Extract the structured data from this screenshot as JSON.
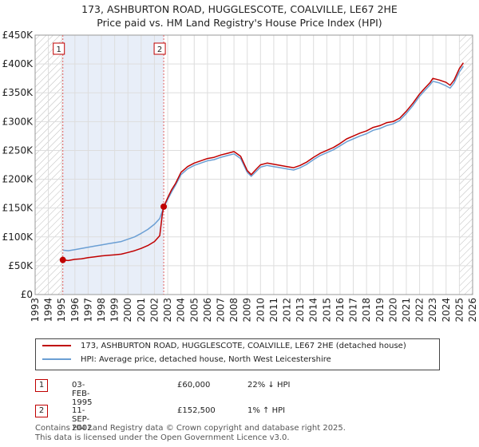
{
  "title_line1": "173, ASHBURTON ROAD, HUGGLESCOTE, COALVILLE, LE67 2HE",
  "title_line2": "Price paid vs. HM Land Registry's House Price Index (HPI)",
  "chart_data": {
    "type": "line",
    "title": "Price paid vs. HM Land Registry's House Price Index (HPI)",
    "xlabel": "",
    "ylabel": "",
    "xlim": [
      1993,
      2026
    ],
    "ylim": [
      0,
      450000
    ],
    "y_ticks": [
      0,
      50000,
      100000,
      150000,
      200000,
      250000,
      300000,
      350000,
      400000,
      450000
    ],
    "y_tick_labels": [
      "£0",
      "£50K",
      "£100K",
      "£150K",
      "£200K",
      "£250K",
      "£300K",
      "£350K",
      "£400K",
      "£450K"
    ],
    "x_ticks": [
      1993,
      1994,
      1995,
      1996,
      1997,
      1998,
      1999,
      2000,
      2001,
      2002,
      2003,
      2004,
      2005,
      2006,
      2007,
      2008,
      2009,
      2010,
      2011,
      2012,
      2013,
      2014,
      2015,
      2016,
      2017,
      2018,
      2019,
      2020,
      2021,
      2022,
      2023,
      2024,
      2025,
      2026
    ],
    "x_tick_labels": [
      "1993",
      "1994",
      "1995",
      "1996",
      "1997",
      "1998",
      "1999",
      "2000",
      "2001",
      "2002",
      "2003",
      "2004",
      "2005",
      "2006",
      "2007",
      "2008",
      "2009",
      "2010",
      "2011",
      "2012",
      "2013",
      "2014",
      "2015",
      "2016",
      "2017",
      "2018",
      "2019",
      "2020",
      "2021",
      "2022",
      "2023",
      "2024",
      "2025",
      "2026"
    ],
    "grid": true,
    "hatch_before": 1995.09,
    "hatch_after": 2025.0,
    "shaded_span": [
      1995.09,
      2002.7
    ],
    "series": [
      {
        "name": "173, ASHBURTON ROAD, HUGGLESCOTE, COALVILLE, LE67 2HE (detached house)",
        "color": "#c00000",
        "x": [
          1995.09,
          1995.5,
          1996,
          1996.5,
          1997,
          1997.5,
          1998,
          1998.5,
          1999,
          1999.5,
          2000,
          2000.5,
          2001,
          2001.5,
          2002,
          2002.4,
          2002.6,
          2002.7,
          2003,
          2003.3,
          2003.6,
          2004,
          2004.5,
          2005,
          2005.5,
          2006,
          2006.5,
          2007,
          2007.5,
          2008,
          2008.5,
          2009,
          2009.3,
          2009.7,
          2010,
          2010.5,
          2011,
          2011.5,
          2012,
          2012.5,
          2013,
          2013.5,
          2014,
          2014.5,
          2015,
          2015.5,
          2016,
          2016.5,
          2017,
          2017.5,
          2018,
          2018.5,
          2019,
          2019.5,
          2020,
          2020.5,
          2021,
          2021.5,
          2022,
          2022.4,
          2022.8,
          2023,
          2023.5,
          2024,
          2024.3,
          2024.6,
          2025,
          2025.3
        ],
        "values": [
          60000,
          59000,
          61000,
          62000,
          64000,
          65500,
          67000,
          68000,
          69000,
          70000,
          73000,
          76000,
          80000,
          85000,
          92000,
          102000,
          140000,
          152500,
          168000,
          182000,
          193000,
          212000,
          222000,
          228000,
          232000,
          236000,
          238000,
          242000,
          245000,
          248000,
          240000,
          215000,
          208000,
          218000,
          225000,
          228000,
          226000,
          224000,
          222000,
          220000,
          224000,
          230000,
          238000,
          245000,
          250000,
          255000,
          262000,
          270000,
          275000,
          280000,
          284000,
          290000,
          293000,
          298000,
          300000,
          306000,
          318000,
          332000,
          348000,
          358000,
          368000,
          375000,
          372000,
          368000,
          363000,
          372000,
          392000,
          402000
        ]
      },
      {
        "name": "HPI: Average price, detached house, North West Leicestershire",
        "color": "#6b9fd4",
        "x": [
          1995.09,
          1995.5,
          1996,
          1996.5,
          1997,
          1997.5,
          1998,
          1998.5,
          1999,
          1999.5,
          2000,
          2000.5,
          2001,
          2001.5,
          2002,
          2002.4,
          2002.6,
          2002.7,
          2003,
          2003.3,
          2003.6,
          2004,
          2004.5,
          2005,
          2005.5,
          2006,
          2006.5,
          2007,
          2007.5,
          2008,
          2008.5,
          2009,
          2009.3,
          2009.7,
          2010,
          2010.5,
          2011,
          2011.5,
          2012,
          2012.5,
          2013,
          2013.5,
          2014,
          2014.5,
          2015,
          2015.5,
          2016,
          2016.5,
          2017,
          2017.5,
          2018,
          2018.5,
          2019,
          2019.5,
          2020,
          2020.5,
          2021,
          2021.5,
          2022,
          2022.4,
          2022.8,
          2023,
          2023.5,
          2024,
          2024.3,
          2024.6,
          2025,
          2025.3
        ],
        "values": [
          77000,
          76000,
          78000,
          80000,
          82000,
          84000,
          86000,
          88000,
          90000,
          92000,
          96000,
          100000,
          106000,
          113000,
          122000,
          132000,
          145000,
          151000,
          165000,
          178000,
          190000,
          208000,
          218000,
          224000,
          228000,
          232000,
          234000,
          238000,
          241000,
          244000,
          236000,
          212000,
          205000,
          214000,
          221000,
          224000,
          222000,
          220000,
          218000,
          216000,
          220000,
          226000,
          234000,
          241000,
          246000,
          251000,
          258000,
          265000,
          270000,
          275000,
          279000,
          285000,
          288000,
          293000,
          296000,
          302000,
          314000,
          328000,
          344000,
          354000,
          364000,
          370000,
          367000,
          362000,
          358000,
          367000,
          386000,
          396000
        ]
      }
    ],
    "markers": [
      {
        "label": "1",
        "x": 1995.09,
        "y": 60000
      },
      {
        "label": "2",
        "x": 2002.7,
        "y": 152500
      }
    ]
  },
  "legend": {
    "property": "173, ASHBURTON ROAD, HUGGLESCOTE, COALVILLE, LE67 2HE (detached house)",
    "hpi": "HPI: Average price, detached house, North West Leicestershire"
  },
  "transactions": [
    {
      "num": "1",
      "date": "03-FEB-1995",
      "price": "£60,000",
      "hpi": "22% ↓ HPI"
    },
    {
      "num": "2",
      "date": "11-SEP-2002",
      "price": "£152,500",
      "hpi": "1% ↑ HPI"
    }
  ],
  "footer_line1": "Contains HM Land Registry data © Crown copyright and database right 2025.",
  "footer_line2": "This data is licensed under the Open Government Licence v3.0."
}
